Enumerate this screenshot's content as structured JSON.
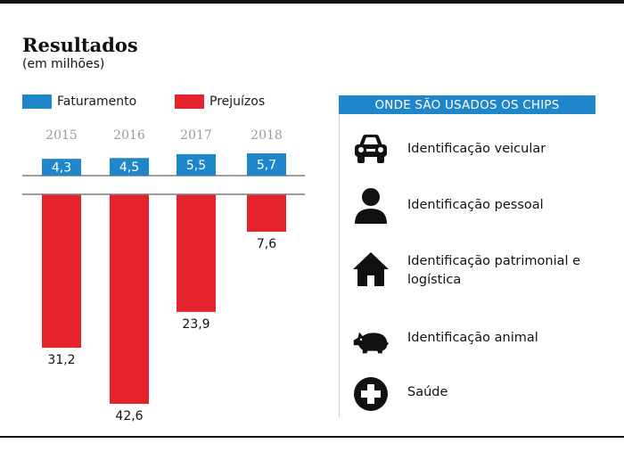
{
  "header": {
    "title": "Resultados",
    "subtitle": "(em milhões)"
  },
  "legend": {
    "items": [
      {
        "label": "Faturamento",
        "color": "#1f86c9"
      },
      {
        "label": "Prejuízos",
        "color": "#e5232c"
      }
    ]
  },
  "chart_data": {
    "type": "bar",
    "categories": [
      "2015",
      "2016",
      "2017",
      "2018"
    ],
    "series": [
      {
        "name": "Faturamento",
        "values": [
          4.3,
          4.5,
          5.5,
          5.7
        ],
        "labels": [
          "4,3",
          "4,5",
          "5,5",
          "5,7"
        ],
        "color": "#1f86c9"
      },
      {
        "name": "Prejuízos",
        "values": [
          31.2,
          42.6,
          23.9,
          7.6
        ],
        "labels": [
          "31,2",
          "42,6",
          "23,9",
          "7,6"
        ],
        "color": "#e5232c"
      }
    ],
    "grid": false,
    "legend_position": "top-left"
  },
  "panel": {
    "header": "ONDE SÃO USADOS OS CHIPS",
    "items": [
      {
        "icon": "car-icon",
        "label": "Identificação veicular"
      },
      {
        "icon": "person-icon",
        "label": "Identificação pessoal"
      },
      {
        "icon": "house-icon",
        "label_line1": "Identificação patrimonial e",
        "label_line2": "logística"
      },
      {
        "icon": "pig-icon",
        "label": "Identificação animal"
      },
      {
        "icon": "health-cross-icon",
        "label": "Saúde"
      }
    ]
  }
}
